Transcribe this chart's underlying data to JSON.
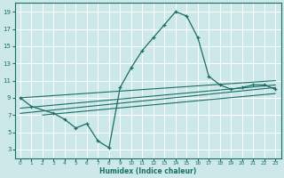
{
  "bg_color": "#cce8e8",
  "grid_color": "#ffffff",
  "line_color": "#1a6e64",
  "xlabel": "Humidex (Indice chaleur)",
  "xlim": [
    -0.5,
    23.5
  ],
  "ylim": [
    2.0,
    20.0
  ],
  "yticks": [
    3,
    5,
    7,
    9,
    11,
    13,
    15,
    17,
    19
  ],
  "xticks": [
    0,
    1,
    2,
    3,
    4,
    5,
    6,
    7,
    8,
    9,
    10,
    11,
    12,
    13,
    14,
    15,
    16,
    17,
    18,
    19,
    20,
    21,
    22,
    23
  ],
  "curve_x": [
    0,
    1,
    3,
    4,
    5,
    6,
    7,
    8,
    9,
    10,
    11,
    12,
    13,
    14,
    15,
    16,
    17,
    18,
    19,
    20,
    21,
    22,
    23
  ],
  "curve_y": [
    9.0,
    8.0,
    7.2,
    6.5,
    5.5,
    6.0,
    4.0,
    3.2,
    10.2,
    12.5,
    14.5,
    16.0,
    17.5,
    19.0,
    18.5,
    16.0,
    11.5,
    10.5,
    10.0,
    10.2,
    10.5,
    10.5,
    10.0
  ],
  "line2_x": [
    0,
    23
  ],
  "line2_y": [
    9.0,
    11.0
  ],
  "line3_x": [
    0,
    23
  ],
  "line3_y": [
    7.8,
    10.5
  ],
  "line4_x": [
    0,
    23
  ],
  "line4_y": [
    7.2,
    10.2
  ],
  "line5_x": [
    2,
    23
  ],
  "line5_y": [
    7.0,
    9.5
  ]
}
